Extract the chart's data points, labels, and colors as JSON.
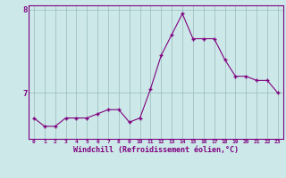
{
  "x": [
    0,
    1,
    2,
    3,
    4,
    5,
    6,
    7,
    8,
    9,
    10,
    11,
    12,
    13,
    14,
    15,
    16,
    17,
    18,
    19,
    20,
    21,
    22,
    23
  ],
  "y": [
    6.7,
    6.6,
    6.6,
    6.7,
    6.7,
    6.7,
    6.75,
    6.8,
    6.8,
    6.65,
    6.7,
    7.05,
    7.45,
    7.7,
    7.95,
    7.65,
    7.65,
    7.65,
    7.4,
    7.2,
    7.2,
    7.15,
    7.15,
    7.0
  ],
  "line_color": "#800080",
  "marker": "+",
  "marker_size": 3,
  "bg_color": "#cce8e8",
  "grid_color": "#99bbbb",
  "xlabel": "Windchill (Refroidissement éolien,°C)",
  "xlabel_color": "#800080",
  "tick_color": "#800080",
  "ylim": [
    6.45,
    8.05
  ],
  "xlim": [
    -0.5,
    23.5
  ],
  "yticks": [
    7,
    8
  ],
  "xticks": [
    0,
    1,
    2,
    3,
    4,
    5,
    6,
    7,
    8,
    9,
    10,
    11,
    12,
    13,
    14,
    15,
    16,
    17,
    18,
    19,
    20,
    21,
    22,
    23
  ],
  "figsize": [
    3.2,
    2.0
  ],
  "dpi": 100
}
